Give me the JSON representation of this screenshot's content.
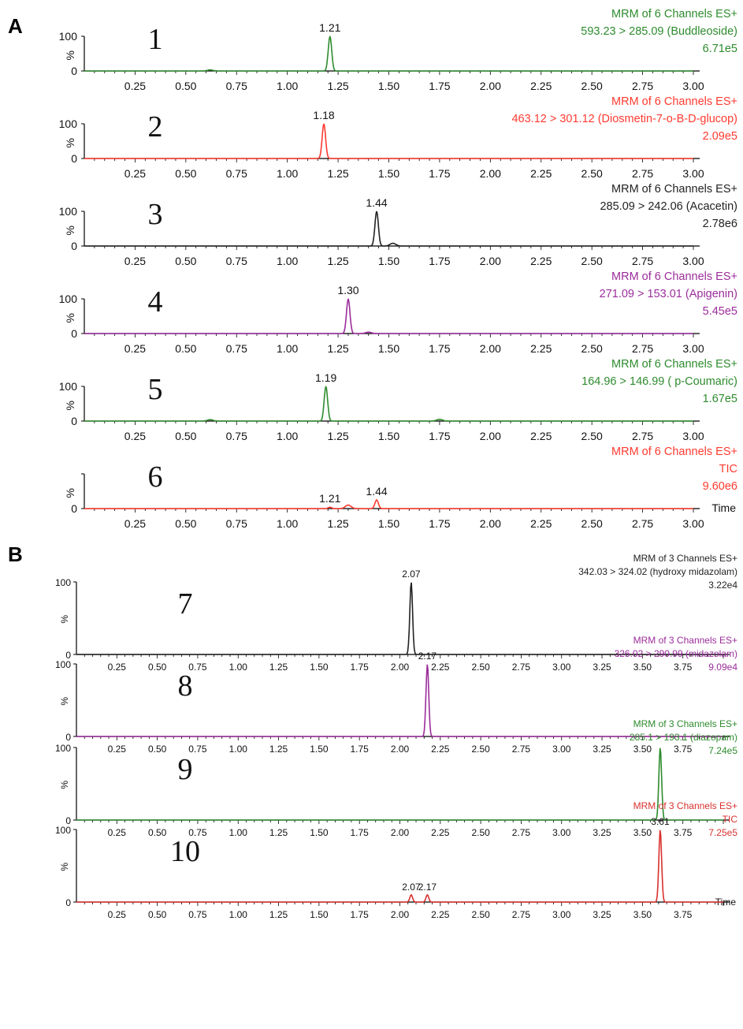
{
  "sections": [
    {
      "label": "A"
    },
    {
      "label": "B"
    }
  ],
  "time_label": "Time",
  "chart_data": [
    {
      "type": "line",
      "panel_number": "1",
      "color": "#2e8b2e",
      "header": [
        "MRM of 6 Channels ES+",
        "593.23 > 285.09 (Buddleoside)",
        "6.71e5"
      ],
      "y_tick_labels": [
        "100",
        "%",
        "0"
      ],
      "ylim": [
        0,
        100
      ],
      "xlim": [
        0,
        3.0
      ],
      "x_ticks": [
        "0.25",
        "0.50",
        "0.75",
        "1.00",
        "1.25",
        "1.50",
        "1.75",
        "2.00",
        "2.25",
        "2.50",
        "2.75",
        "3.00"
      ],
      "peaks": [
        {
          "x": 1.21,
          "y": 100,
          "label": "1.21"
        }
      ],
      "minor_peaks": [
        {
          "x": 0.62,
          "y": 3
        }
      ]
    },
    {
      "type": "line",
      "panel_number": "2",
      "color": "#ff3b30",
      "header": [
        "MRM of 6 Channels ES+",
        "463.12 > 301.12 (Diosmetin-7-o-B-D-glucop)",
        "2.09e5"
      ],
      "y_tick_labels": [
        "100",
        "%",
        "0"
      ],
      "ylim": [
        0,
        100
      ],
      "xlim": [
        0,
        3.0
      ],
      "x_ticks": [
        "0.25",
        "0.50",
        "0.75",
        "1.00",
        "1.25",
        "1.50",
        "1.75",
        "2.00",
        "2.25",
        "2.50",
        "2.75",
        "3.00"
      ],
      "peaks": [
        {
          "x": 1.18,
          "y": 100,
          "label": "1.18"
        }
      ],
      "minor_peaks": []
    },
    {
      "type": "line",
      "panel_number": "3",
      "color": "#222222",
      "header": [
        "MRM of 6 Channels ES+",
        "285.09 > 242.06 (Acacetin)",
        "2.78e6"
      ],
      "y_tick_labels": [
        "100",
        "%",
        "0"
      ],
      "ylim": [
        0,
        100
      ],
      "xlim": [
        0,
        3.0
      ],
      "x_ticks": [
        "0.25",
        "0.50",
        "0.75",
        "1.00",
        "1.25",
        "1.50",
        "1.75",
        "2.00",
        "2.25",
        "2.50",
        "2.75",
        "3.00"
      ],
      "peaks": [
        {
          "x": 1.44,
          "y": 100,
          "label": "1.44"
        }
      ],
      "minor_peaks": [
        {
          "x": 1.52,
          "y": 8
        }
      ]
    },
    {
      "type": "line",
      "panel_number": "4",
      "color": "#9b2d9b",
      "header": [
        "MRM of 6 Channels ES+",
        "271.09 > 153.01 (Apigenin)",
        "5.45e5"
      ],
      "y_tick_labels": [
        "100",
        "%",
        "0"
      ],
      "ylim": [
        0,
        100
      ],
      "xlim": [
        0,
        3.0
      ],
      "x_ticks": [
        "0.25",
        "0.50",
        "0.75",
        "1.00",
        "1.25",
        "1.50",
        "1.75",
        "2.00",
        "2.25",
        "2.50",
        "2.75",
        "3.00"
      ],
      "peaks": [
        {
          "x": 1.3,
          "y": 100,
          "label": "1.30"
        }
      ],
      "minor_peaks": [
        {
          "x": 1.4,
          "y": 4
        }
      ]
    },
    {
      "type": "line",
      "panel_number": "5",
      "color": "#2e8b2e",
      "header": [
        "MRM of 6 Channels ES+",
        "164.96 > 146.99 ( p-Coumaric)",
        "1.67e5"
      ],
      "y_tick_labels": [
        "100",
        "%",
        "0"
      ],
      "ylim": [
        0,
        100
      ],
      "xlim": [
        0,
        3.0
      ],
      "x_ticks": [
        "0.25",
        "0.50",
        "0.75",
        "1.00",
        "1.25",
        "1.50",
        "1.75",
        "2.00",
        "2.25",
        "2.50",
        "2.75",
        "3.00"
      ],
      "peaks": [
        {
          "x": 1.19,
          "y": 100,
          "label": "1.19"
        }
      ],
      "minor_peaks": [
        {
          "x": 0.62,
          "y": 4
        },
        {
          "x": 1.75,
          "y": 5
        }
      ]
    },
    {
      "type": "line",
      "panel_number": "6",
      "color": "#ff3b30",
      "header": [
        "MRM of 6 Channels ES+",
        "TIC",
        "9.60e6"
      ],
      "y_tick_labels": [
        "",
        "%",
        "0"
      ],
      "ylim": [
        0,
        100
      ],
      "xlim": [
        0,
        3.0
      ],
      "x_ticks": [
        "0.25",
        "0.50",
        "0.75",
        "1.00",
        "1.25",
        "1.50",
        "1.75",
        "2.00",
        "2.25",
        "2.50",
        "2.75",
        "3.00"
      ],
      "show_time": true,
      "peaks": [
        {
          "x": 1.21,
          "y": 4,
          "label": "1.21"
        },
        {
          "x": 1.44,
          "y": 25,
          "label": "1.44"
        }
      ],
      "minor_peaks": [
        {
          "x": 1.3,
          "y": 10
        }
      ]
    },
    {
      "type": "line",
      "panel_number": "7",
      "color": "#222222",
      "header": [
        "MRM of 3 Channels ES+",
        "342.03 > 324.02 (hydroxy midazolam)",
        "3.22e4"
      ],
      "y_tick_labels": [
        "100",
        "%",
        "0"
      ],
      "ylim": [
        0,
        100
      ],
      "xlim": [
        0,
        4.0
      ],
      "x_ticks": [
        "0.25",
        "0.50",
        "0.75",
        "1.00",
        "1.25",
        "1.50",
        "1.75",
        "2.00",
        "2.25",
        "2.50",
        "2.75",
        "3.00",
        "3.25",
        "3.50",
        "3.75"
      ],
      "peaks": [
        {
          "x": 2.07,
          "y": 100,
          "label": "2.07"
        }
      ],
      "minor_peaks": []
    },
    {
      "type": "line",
      "panel_number": "8",
      "color": "#9b2d9b",
      "header": [
        "MRM of 3 Channels ES+",
        "326.02 > 290.99 (midazolam)",
        "9.09e4"
      ],
      "y_tick_labels": [
        "100",
        "%",
        "0"
      ],
      "ylim": [
        0,
        100
      ],
      "xlim": [
        0,
        4.0
      ],
      "x_ticks": [
        "0.25",
        "0.50",
        "0.75",
        "1.00",
        "1.25",
        "1.50",
        "1.75",
        "2.00",
        "2.25",
        "2.50",
        "2.75",
        "3.00",
        "3.25",
        "3.50",
        "3.75"
      ],
      "peaks": [
        {
          "x": 2.17,
          "y": 100,
          "label": "2.17"
        }
      ],
      "minor_peaks": []
    },
    {
      "type": "line",
      "panel_number": "9",
      "color": "#2e8b2e",
      "header": [
        "MRM of 3 Channels ES+",
        "285.1 > 193.1 (diazepam)",
        "7.24e5"
      ],
      "y_tick_labels": [
        "100",
        "%",
        "0"
      ],
      "ylim": [
        0,
        100
      ],
      "xlim": [
        0,
        4.0
      ],
      "x_ticks": [
        "0.25",
        "0.50",
        "0.75",
        "1.00",
        "1.25",
        "1.50",
        "1.75",
        "2.00",
        "2.25",
        "2.50",
        "2.75",
        "3.00",
        "3.25",
        "3.50",
        "3.75"
      ],
      "peaks": [
        {
          "x": 3.61,
          "y": 100,
          "label": ""
        }
      ],
      "minor_peaks": []
    },
    {
      "type": "line",
      "panel_number": "10",
      "color": "#d9312f",
      "header": [
        "MRM of 3 Channels ES+",
        "TIC",
        "7.25e5"
      ],
      "y_tick_labels": [
        "100",
        "%",
        "0"
      ],
      "ylim": [
        0,
        100
      ],
      "xlim": [
        0,
        4.0
      ],
      "x_ticks": [
        "0.25",
        "0.50",
        "0.75",
        "1.00",
        "1.25",
        "1.50",
        "1.75",
        "2.00",
        "2.25",
        "2.50",
        "2.75",
        "3.00",
        "3.25",
        "3.50",
        "3.75"
      ],
      "show_time": true,
      "peaks": [
        {
          "x": 2.07,
          "y": 10,
          "label": "2.07"
        },
        {
          "x": 2.17,
          "y": 10,
          "label": "2.17"
        },
        {
          "x": 3.61,
          "y": 100,
          "label": "3.61"
        }
      ],
      "minor_peaks": []
    }
  ]
}
